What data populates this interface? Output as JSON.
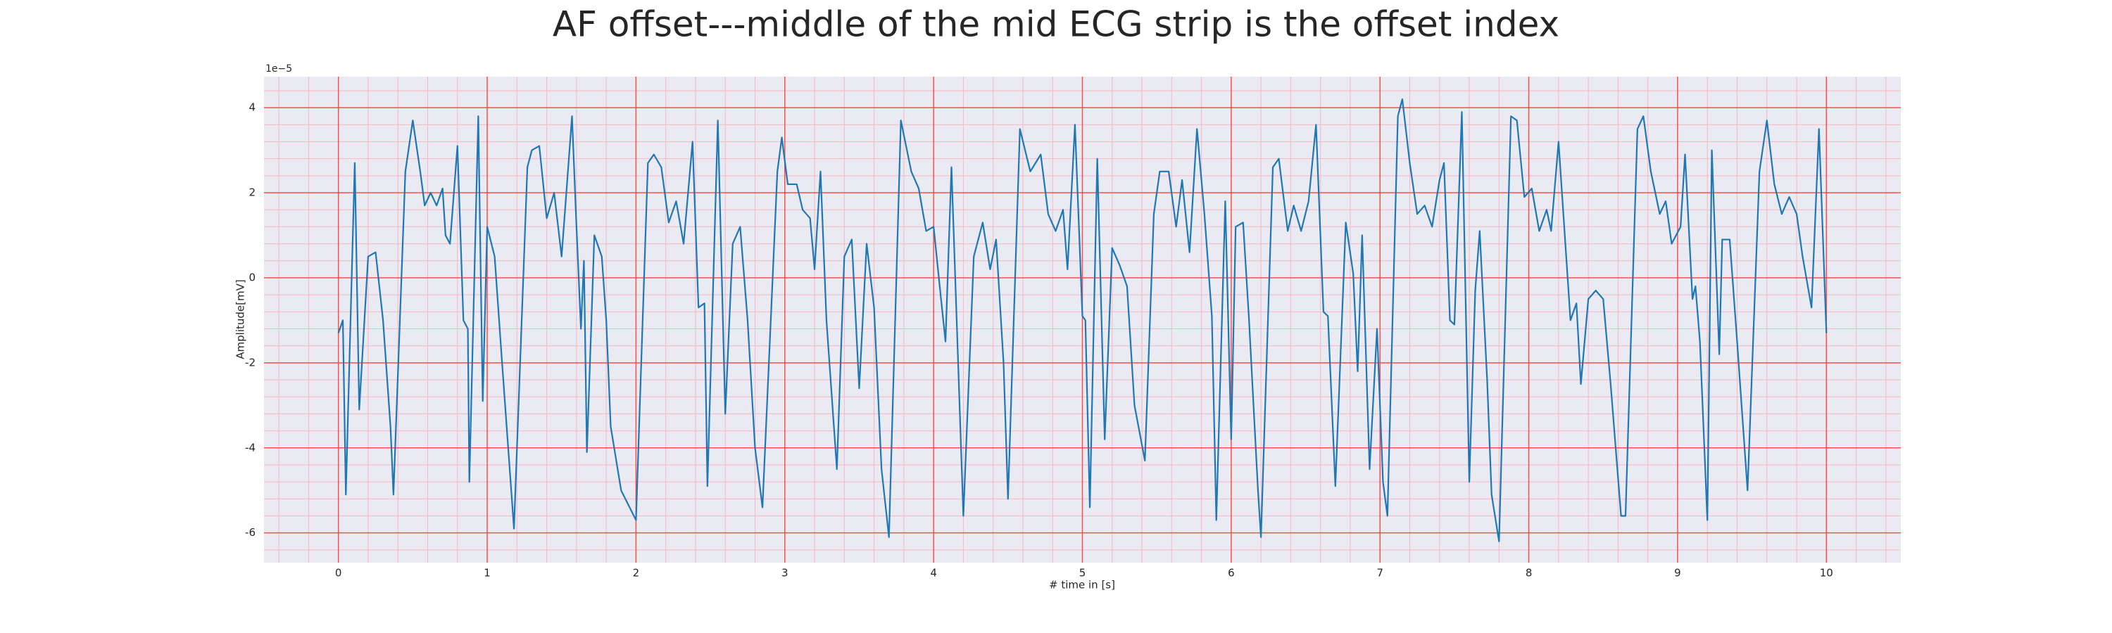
{
  "chart_data": {
    "type": "line",
    "title": "AF offset---middle of the mid ECG strip is the offset index",
    "x_label": "# time in [s]",
    "y_label": "Amplitude[mV]",
    "y_offset_text": "1e−5",
    "color": "#1f77b4",
    "background": "#eaeaf2",
    "grid": true,
    "grid_color": "#ff4d4d",
    "minor_grid": {
      "x_step": 0.2,
      "y_step": 0.4,
      "color": "#f5b8c4"
    },
    "xlim": [
      -0.5,
      10.5
    ],
    "ylim": [
      -6.7,
      4.73
    ],
    "xticks": [
      0,
      1,
      2,
      3,
      4,
      5,
      6,
      7,
      8,
      9,
      10
    ],
    "yticks": [
      -6,
      -4,
      -2,
      0,
      2,
      4
    ],
    "x": [
      0,
      0.03,
      0.05,
      0.11,
      0.14,
      0.2,
      0.25,
      0.3,
      0.35,
      0.37,
      0.45,
      0.5,
      0.55,
      0.58,
      0.62,
      0.66,
      0.7,
      0.72,
      0.75,
      0.8,
      0.84,
      0.87,
      0.88,
      0.94,
      0.97,
      1.0,
      1.05,
      1.1,
      1.18,
      1.27,
      1.3,
      1.35,
      1.4,
      1.45,
      1.5,
      1.57,
      1.6,
      1.63,
      1.65,
      1.67,
      1.72,
      1.77,
      1.8,
      1.83,
      1.9,
      2.0,
      2.08,
      2.12,
      2.17,
      2.22,
      2.27,
      2.32,
      2.38,
      2.42,
      2.46,
      2.48,
      2.55,
      2.6,
      2.65,
      2.7,
      2.75,
      2.8,
      2.85,
      2.95,
      2.98,
      3.02,
      3.08,
      3.12,
      3.17,
      3.2,
      3.24,
      3.28,
      3.35,
      3.4,
      3.45,
      3.5,
      3.55,
      3.6,
      3.65,
      3.7,
      3.78,
      3.85,
      3.9,
      3.95,
      4.0,
      4.05,
      4.08,
      4.12,
      4.2,
      4.27,
      4.33,
      4.38,
      4.42,
      4.47,
      4.5,
      4.58,
      4.65,
      4.72,
      4.77,
      4.82,
      4.87,
      4.9,
      4.95,
      5.0,
      5.02,
      5.05,
      5.1,
      5.15,
      5.2,
      5.25,
      5.3,
      5.35,
      5.42,
      5.48,
      5.52,
      5.58,
      5.63,
      5.67,
      5.72,
      5.77,
      5.82,
      5.87,
      5.9,
      5.96,
      6.0,
      6.03,
      6.08,
      6.12,
      6.18,
      6.2,
      6.28,
      6.32,
      6.38,
      6.42,
      6.47,
      6.52,
      6.57,
      6.62,
      6.65,
      6.7,
      6.77,
      6.82,
      6.85,
      6.88,
      6.93,
      6.98,
      7.02,
      7.05,
      7.12,
      7.15,
      7.2,
      7.25,
      7.3,
      7.35,
      7.4,
      7.43,
      7.47,
      7.5,
      7.55,
      7.6,
      7.64,
      7.67,
      7.72,
      7.75,
      7.8,
      7.88,
      7.92,
      7.97,
      8.02,
      8.07,
      8.12,
      8.15,
      8.2,
      8.28,
      8.32,
      8.35,
      8.4,
      8.45,
      8.5,
      8.55,
      8.62,
      8.65,
      8.73,
      8.77,
      8.82,
      8.88,
      8.92,
      8.96,
      9.02,
      9.05,
      9.1,
      9.12,
      9.15,
      9.2,
      9.23,
      9.28,
      9.3,
      9.35,
      9.4,
      9.47,
      9.55,
      9.6,
      9.65,
      9.7,
      9.75,
      9.8,
      9.84,
      9.9,
      9.95,
      10.0
    ],
    "values": [
      -1.3,
      -1.0,
      -5.1,
      2.7,
      -3.1,
      0.5,
      0.6,
      -1.0,
      -3.5,
      -5.1,
      2.5,
      3.7,
      2.5,
      1.7,
      2.0,
      1.7,
      2.1,
      1.0,
      0.8,
      3.1,
      -1.0,
      -1.2,
      -4.8,
      3.8,
      -2.9,
      1.2,
      0.5,
      -2.0,
      -5.9,
      2.6,
      3.0,
      3.1,
      1.4,
      2.0,
      0.5,
      3.8,
      1.2,
      -1.2,
      0.4,
      -4.1,
      1.0,
      0.5,
      -1.0,
      -3.5,
      -5.0,
      -5.7,
      2.7,
      2.9,
      2.6,
      1.3,
      1.8,
      0.8,
      3.2,
      -0.7,
      -0.6,
      -4.9,
      3.7,
      -3.2,
      0.8,
      1.2,
      -1.0,
      -4.0,
      -5.4,
      2.5,
      3.3,
      2.2,
      2.2,
      1.6,
      1.4,
      0.2,
      2.5,
      -1.0,
      -4.5,
      0.5,
      0.9,
      -2.6,
      0.8,
      -0.7,
      -4.5,
      -6.1,
      3.7,
      2.5,
      2.1,
      1.1,
      1.2,
      -0.5,
      -1.5,
      2.6,
      -5.6,
      0.5,
      1.3,
      0.2,
      0.9,
      -2.0,
      -5.2,
      3.5,
      2.5,
      2.9,
      1.5,
      1.1,
      1.6,
      0.2,
      3.6,
      -0.9,
      -1.0,
      -5.4,
      2.8,
      -3.8,
      0.7,
      0.3,
      -0.2,
      -3.0,
      -4.3,
      1.5,
      2.5,
      2.5,
      1.2,
      2.3,
      0.6,
      3.5,
      1.5,
      -0.9,
      -5.7,
      1.8,
      -3.8,
      1.2,
      1.3,
      -1.0,
      -5.0,
      -6.1,
      2.6,
      2.8,
      1.1,
      1.7,
      1.1,
      1.8,
      3.6,
      -0.8,
      -0.9,
      -4.9,
      1.3,
      0.1,
      -2.2,
      1.0,
      -4.5,
      -1.2,
      -4.8,
      -5.6,
      3.8,
      4.2,
      2.7,
      1.5,
      1.7,
      1.2,
      2.3,
      2.7,
      -1.0,
      -1.1,
      3.9,
      -4.8,
      -0.3,
      1.1,
      -2.4,
      -5.1,
      -6.2,
      3.8,
      3.7,
      1.9,
      2.1,
      1.1,
      1.6,
      1.1,
      3.2,
      -1.0,
      -0.6,
      -2.5,
      -0.5,
      -0.3,
      -0.5,
      -2.5,
      -5.6,
      -5.6,
      3.5,
      3.8,
      2.5,
      1.5,
      1.8,
      0.8,
      1.2,
      2.9,
      -0.5,
      -0.2,
      -1.5,
      -5.7,
      3.0,
      -1.8,
      0.9,
      0.9,
      -1.5,
      -5.0,
      2.5,
      3.7,
      2.2,
      1.5,
      1.9,
      1.5,
      0.5,
      -0.7,
      3.5,
      -1.3
    ]
  }
}
